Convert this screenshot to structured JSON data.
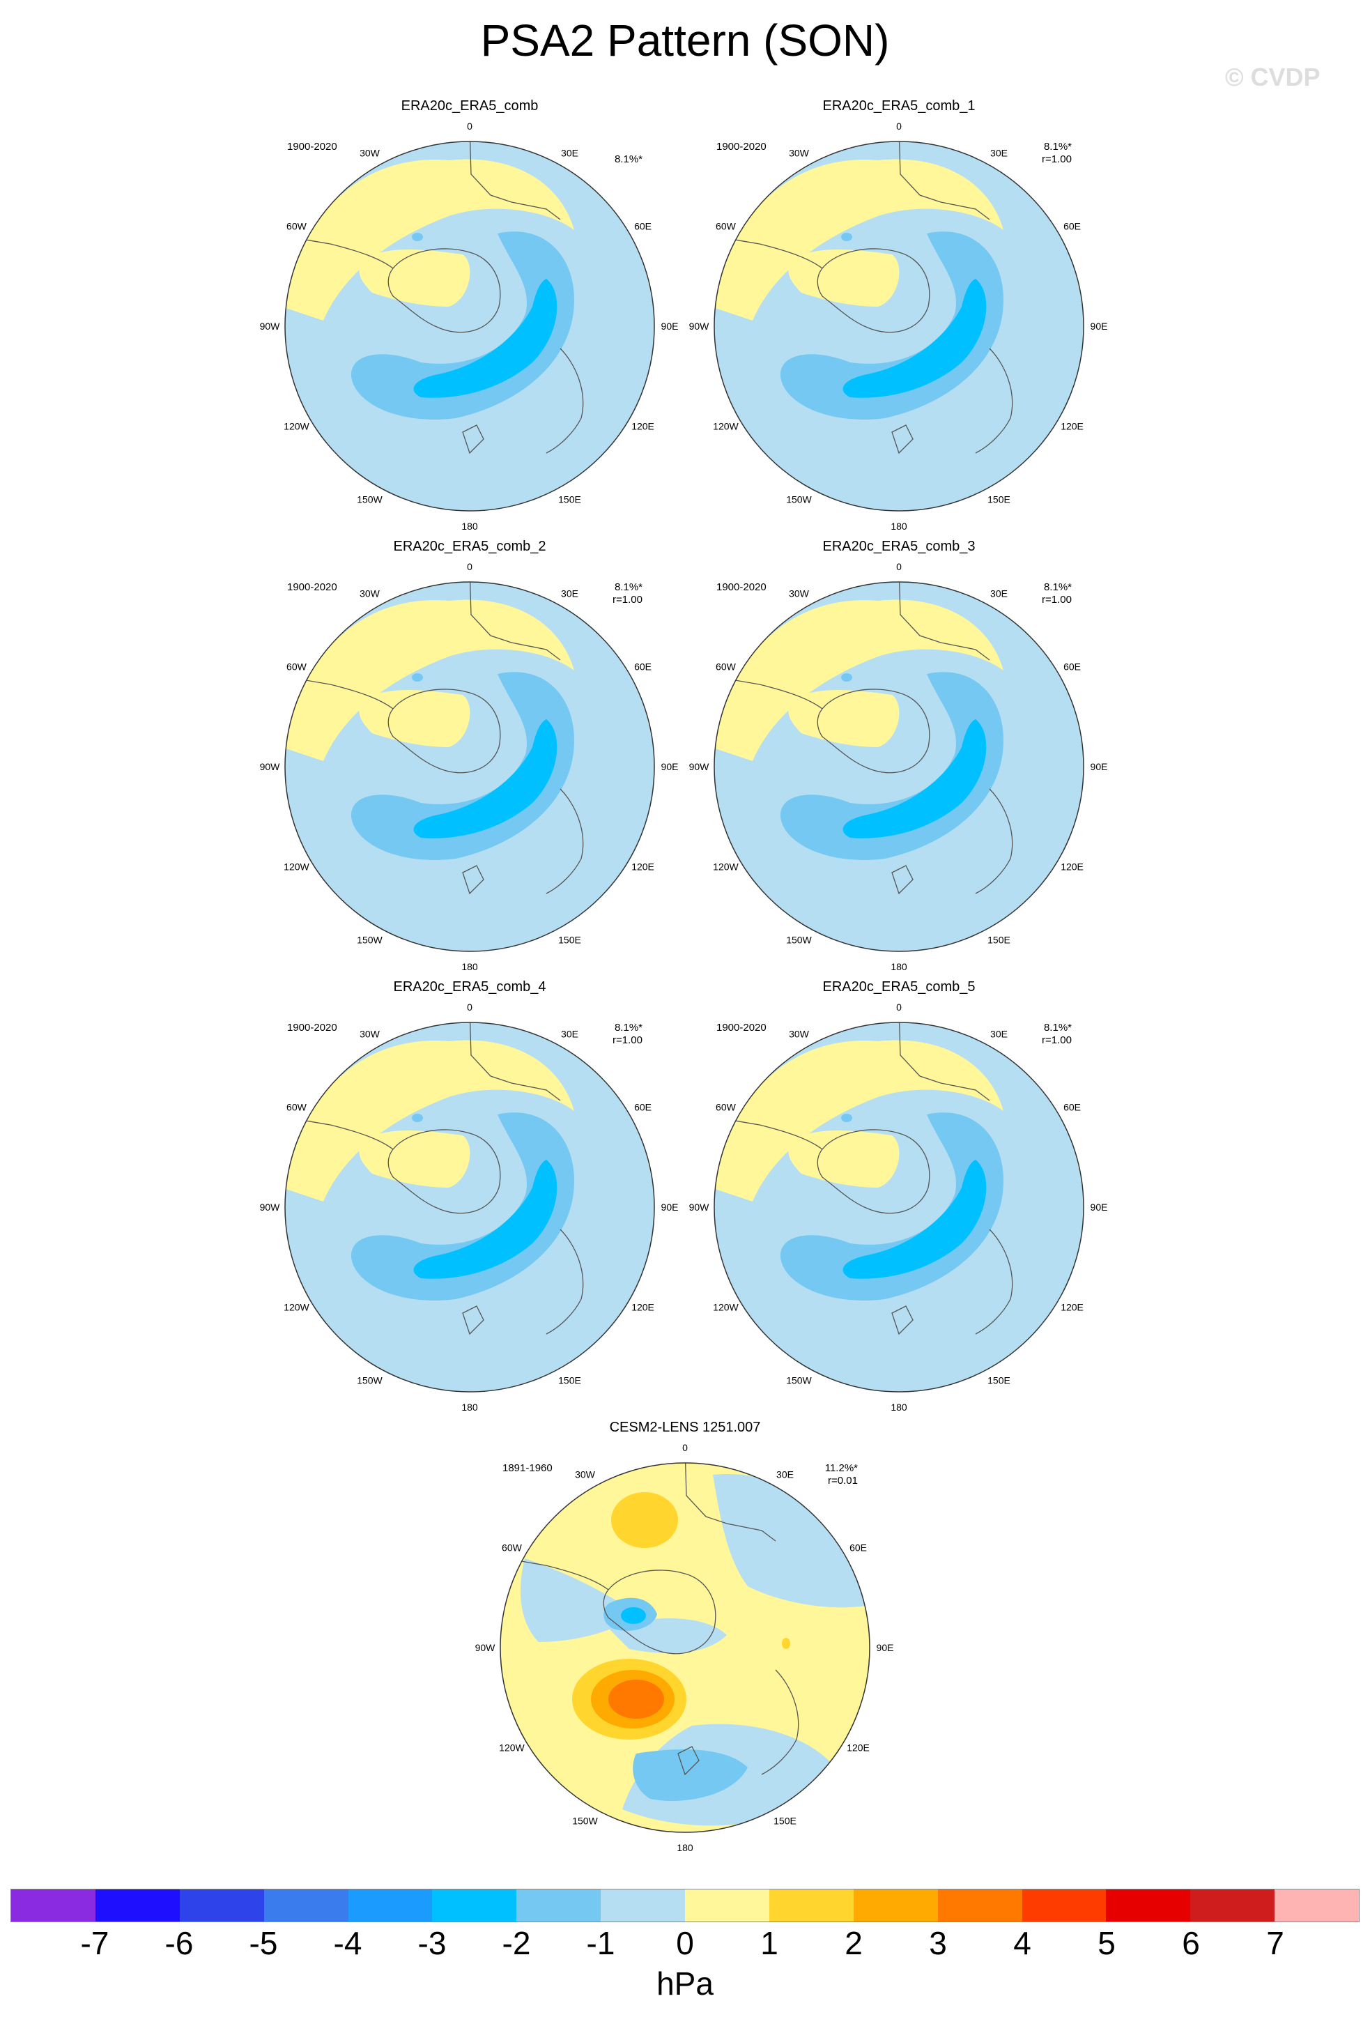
{
  "title": "PSA2 Pattern (SON)",
  "watermark": "© CVDP",
  "units": "hPa",
  "colorbar": {
    "labels": [
      "-7",
      "-6",
      "-5",
      "-4",
      "-3",
      "-2",
      "-1",
      "0",
      "1",
      "2",
      "3",
      "4",
      "5",
      "6",
      "7"
    ],
    "colors": [
      "#8a2be2",
      "#1e10ff",
      "#2e44ea",
      "#3a7bee",
      "#1c9bff",
      "#00c0ff",
      "#74c8f1",
      "#b5def2",
      "#fff79a",
      "#ffd52e",
      "#ffaa00",
      "#ff7800",
      "#ff3c00",
      "#e60000",
      "#cf1d1d",
      "#ffb4b4"
    ]
  },
  "lon_labels": [
    "0",
    "30E",
    "60E",
    "90E",
    "120E",
    "150E",
    "180",
    "150W",
    "120W",
    "90W",
    "60W",
    "30W"
  ],
  "panels": [
    {
      "title": "ERA20c_ERA5_comb",
      "period": "1900-2020",
      "pct": "8.1%*",
      "corr": ""
    },
    {
      "title": "ERA20c_ERA5_comb_1",
      "period": "1900-2020",
      "pct": "8.1%*",
      "corr": "r=1.00"
    },
    {
      "title": "ERA20c_ERA5_comb_2",
      "period": "1900-2020",
      "pct": "8.1%*",
      "corr": "r=1.00"
    },
    {
      "title": "ERA20c_ERA5_comb_3",
      "period": "1900-2020",
      "pct": "8.1%*",
      "corr": "r=1.00"
    },
    {
      "title": "ERA20c_ERA5_comb_4",
      "period": "1900-2020",
      "pct": "8.1%*",
      "corr": "r=1.00"
    },
    {
      "title": "ERA20c_ERA5_comb_5",
      "period": "1900-2020",
      "pct": "8.1%*",
      "corr": "r=1.00"
    },
    {
      "title": "CESM2-LENS 1251.007",
      "period": "1891-1960",
      "pct": "11.2%*",
      "corr": "r=0.01"
    }
  ]
}
